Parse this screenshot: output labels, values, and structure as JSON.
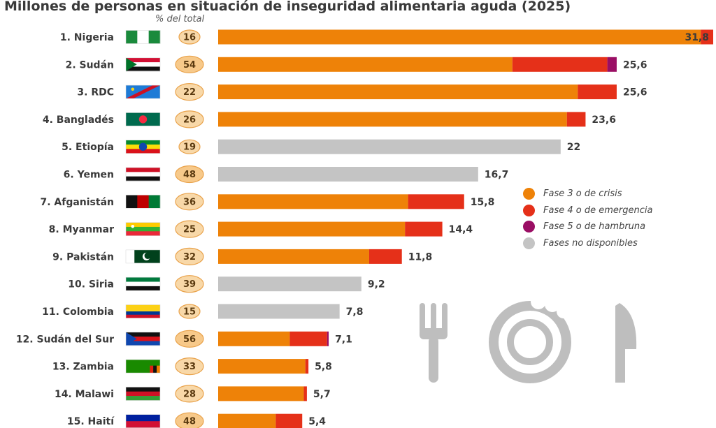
{
  "chart_data": {
    "type": "bar",
    "orientation": "horizontal",
    "stacked": true,
    "title": "Millones de personas en situación de inseguridad alimentaria aguda (2025)",
    "pct_header": "% del total",
    "categories": [
      "1. Nigeria",
      "2. Sudán",
      "3. RDC",
      "4. Bangladés",
      "5. Etiopía",
      "6. Yemen",
      "7. Afganistán",
      "8. Myanmar",
      "9. Pakistán",
      "10. Siria",
      "11. Colombia",
      "12. Sudán del Sur",
      "13. Zambia",
      "14. Malawi",
      "15. Haití"
    ],
    "totals": [
      31.8,
      25.6,
      25.6,
      23.6,
      22,
      16.7,
      15.8,
      14.4,
      11.8,
      9.2,
      7.8,
      7.1,
      5.8,
      5.7,
      5.4
    ],
    "total_labels": [
      "31,8",
      "25,6",
      "25,6",
      "23,6",
      "22",
      "16,7",
      "15,8",
      "14,4",
      "11,8",
      "9,2",
      "7,8",
      "7,1",
      "5,8",
      "5,7",
      "5,4"
    ],
    "percent_of_total": [
      "16",
      "54",
      "22",
      "26",
      "19",
      "48",
      "36",
      "25",
      "32",
      "39",
      "15",
      "56",
      "33",
      "28",
      "48"
    ],
    "series": [
      {
        "name": "Fase 3 o de crisis",
        "color": "#ee8208",
        "values": [
          31.0,
          18.9,
          23.1,
          22.4,
          0,
          0,
          12.2,
          12.0,
          9.7,
          0,
          0,
          4.6,
          5.6,
          5.5,
          3.7
        ]
      },
      {
        "name": "Fase 4 o de emergencia",
        "color": "#e53019",
        "values": [
          0.8,
          6.1,
          2.5,
          1.2,
          0,
          0,
          3.6,
          2.4,
          2.1,
          0,
          0,
          2.4,
          0.2,
          0.2,
          1.7
        ]
      },
      {
        "name": "Fase 5 o de hambruna",
        "color": "#9a0e64",
        "values": [
          0,
          0.6,
          0,
          0,
          0,
          0,
          0,
          0,
          0,
          0,
          0,
          0.1,
          0,
          0,
          0
        ]
      },
      {
        "name": "Fases no disponibles",
        "color": "#c4c4c4",
        "values": [
          0,
          0,
          0,
          0,
          22,
          16.7,
          0,
          0,
          0,
          9.2,
          7.8,
          0,
          0,
          0,
          0
        ]
      }
    ],
    "xlim": [
      0,
      31.8
    ],
    "grid": false,
    "legend_position": "right"
  },
  "flags": [
    {
      "name": "nigeria-flag",
      "bands": "v",
      "colors": [
        "#1a8a3c",
        "#ffffff",
        "#1a8a3c"
      ]
    },
    {
      "name": "sudan-flag",
      "bands": "h",
      "colors": [
        "#d21034",
        "#ffffff",
        "#111111"
      ],
      "tri": "#007229"
    },
    {
      "name": "drc-flag",
      "bands": "solid",
      "colors": [
        "#1e7bd6"
      ],
      "diag": "#ce1021",
      "star": "#f7d618"
    },
    {
      "name": "bangladesh-flag",
      "bands": "solid",
      "colors": [
        "#006a4e"
      ],
      "circle": "#f42a41"
    },
    {
      "name": "ethiopia-flag",
      "bands": "h",
      "colors": [
        "#078930",
        "#fcdd09",
        "#da121a"
      ],
      "circle": "#0f47af"
    },
    {
      "name": "yemen-flag",
      "bands": "h",
      "colors": [
        "#ce1126",
        "#ffffff",
        "#111111"
      ]
    },
    {
      "name": "afghanistan-flag",
      "bands": "v",
      "colors": [
        "#111111",
        "#be0000",
        "#007a36"
      ]
    },
    {
      "name": "myanmar-flag",
      "bands": "h",
      "colors": [
        "#fecb00",
        "#34b233",
        "#ea2839"
      ],
      "star": "#ffffff"
    },
    {
      "name": "pakistan-flag",
      "bands": "v4",
      "colors": [
        "#ffffff",
        "#01411c",
        "#01411c",
        "#01411c"
      ]
    },
    {
      "name": "syria-flag",
      "bands": "h",
      "colors": [
        "#007a3d",
        "#ffffff",
        "#111111"
      ]
    },
    {
      "name": "colombia-flag",
      "bands": "h2",
      "colors": [
        "#fcd116",
        "#fcd116",
        "#003893",
        "#ce1126"
      ]
    },
    {
      "name": "south-sudan-flag",
      "bands": "h",
      "colors": [
        "#111111",
        "#da121a",
        "#0f47af"
      ],
      "tri": "#0f47af"
    },
    {
      "name": "zambia-flag",
      "bands": "solid",
      "colors": [
        "#198a00"
      ],
      "stripes": [
        "#de2010",
        "#111111",
        "#ef7d00"
      ]
    },
    {
      "name": "malawi-flag",
      "bands": "h",
      "colors": [
        "#111111",
        "#ce1126",
        "#339e35"
      ]
    },
    {
      "name": "haiti-flag",
      "bands": "h2",
      "colors": [
        "#00209f",
        "#d21034"
      ]
    }
  ],
  "colors": {
    "badge_fill": "#f8d8a8",
    "badge_fill_strong": "#f7c98a",
    "badge_stroke": "#e9a24a",
    "watermark": "#8a8a8a"
  }
}
